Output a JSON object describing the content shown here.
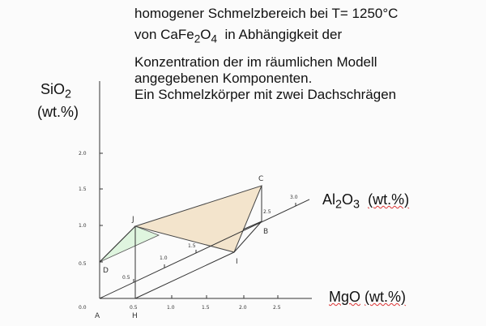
{
  "caption": {
    "line1": "homogener Schmelzbereich bei T= 1250°C",
    "line2_pre": "von CaFe",
    "line2_sub1": "2",
    "line2_mid": "O",
    "line2_sub2": "4",
    "line2_post": "  in Abhängigkeit der",
    "line3": "Konzentration der im räumlichen Modell",
    "line4": "angegebenen Komponenten.",
    "line5": "Ein Schmelzkörper mit zwei Dachschrägen"
  },
  "axes": {
    "sio2": {
      "pre": "SiO",
      "sub": "2",
      "unit": "(wt.%)"
    },
    "al2o3": {
      "pre": "Al",
      "sub1": "2",
      "mid": "O",
      "sub2": "3",
      "unit": "(wt.%)"
    },
    "mgo": {
      "label": "MgO",
      "unit": "(wt.%)"
    },
    "sio2_ticks": [
      "2.0",
      "1.5",
      "1.0",
      "0.5",
      "0.0"
    ],
    "mgo_ticks": [
      "0.5",
      "1.0",
      "1.5",
      "2.0",
      "2.5"
    ],
    "al2o3_ticks": [
      "0.5",
      "1.0",
      "1.5",
      "2.5",
      "3.0"
    ]
  },
  "points": {
    "A": "A",
    "H": "H",
    "J": "J",
    "D": "D",
    "C": "C",
    "B": "B",
    "I": "I"
  },
  "colors": {
    "roof_main": "#f3e4cc",
    "roof_small": "#dff5df",
    "lines": "#333333"
  }
}
